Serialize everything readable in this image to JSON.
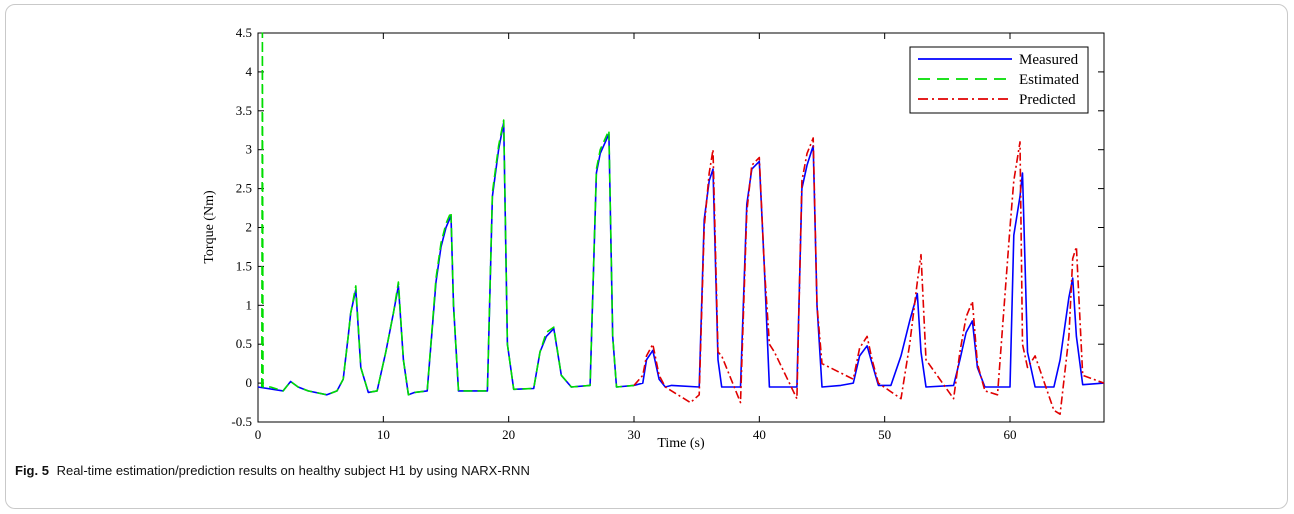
{
  "caption": {
    "label": "Fig. 5",
    "text": "Real-time estimation/prediction results on healthy subject H1 by using NARX-RNN"
  },
  "chart_data": {
    "type": "line",
    "title": "",
    "xlabel": "Time (s)",
    "ylabel": "Torque (Nm)",
    "xlim": [
      0,
      67.5
    ],
    "ylim": [
      -0.5,
      4.5
    ],
    "xticks": [
      0,
      10,
      20,
      30,
      40,
      50,
      60
    ],
    "yticks": [
      -0.5,
      0,
      0.5,
      1,
      1.5,
      2,
      2.5,
      3,
      3.5,
      4,
      4.5
    ],
    "grid": false,
    "legend_position": "top-right",
    "colors": {
      "Measured": "#0000ff",
      "Estimated": "#00dd00",
      "Predicted": "#e00000"
    },
    "series": [
      {
        "name": "Measured",
        "style": "solid",
        "x": [
          0,
          2,
          2.6,
          3.2,
          4,
          5.5,
          6.3,
          6.8,
          7.2,
          7.4,
          7.8,
          8.2,
          8.8,
          9.5,
          10.2,
          10.8,
          11.2,
          11.6,
          12,
          12.5,
          13.5,
          14.2,
          14.6,
          15,
          15.4,
          15.6,
          16,
          16.8,
          18.3,
          18.7,
          19.2,
          19.6,
          19.9,
          20.4,
          22,
          22.5,
          23,
          23.6,
          24.2,
          25,
          26.5,
          27,
          27.3,
          28,
          28.3,
          28.6,
          30,
          30.7,
          31,
          31.5,
          32,
          32.5,
          33,
          35.2,
          35.6,
          36,
          36.3,
          36.7,
          37,
          38.5,
          39,
          39.4,
          40,
          40.4,
          40.8,
          41.2,
          43,
          43.4,
          43.8,
          44.3,
          44.6,
          45,
          46.5,
          47.5,
          48,
          48.6,
          49,
          49.5,
          50.5,
          51.3,
          52,
          52.6,
          52.9,
          53.3,
          55.5,
          56,
          56.5,
          57,
          57.4,
          58,
          59,
          60,
          60.3,
          60.8,
          61,
          61.4,
          62,
          63.5,
          64,
          64.7,
          65,
          65.3,
          65.8,
          67.5
        ],
        "y": [
          -0.05,
          -0.1,
          0.02,
          -0.05,
          -0.1,
          -0.15,
          -0.1,
          0.05,
          0.6,
          0.9,
          1.2,
          0.2,
          -0.12,
          -0.1,
          0.4,
          0.9,
          1.25,
          0.3,
          -0.15,
          -0.12,
          -0.1,
          1.3,
          1.75,
          2.0,
          2.15,
          1.0,
          -0.1,
          -0.1,
          -0.1,
          2.4,
          3.0,
          3.35,
          0.5,
          -0.08,
          -0.07,
          0.4,
          0.6,
          0.7,
          0.1,
          -0.05,
          -0.03,
          2.7,
          2.95,
          3.2,
          0.6,
          -0.05,
          -0.03,
          0.0,
          0.3,
          0.42,
          0.05,
          -0.05,
          -0.03,
          -0.05,
          2.1,
          2.6,
          2.75,
          0.3,
          -0.05,
          -0.05,
          2.3,
          2.75,
          2.85,
          1.5,
          -0.05,
          -0.05,
          -0.05,
          2.5,
          2.8,
          3.05,
          1.0,
          -0.05,
          -0.03,
          0.0,
          0.35,
          0.48,
          0.25,
          -0.03,
          -0.03,
          0.35,
          0.8,
          1.15,
          0.4,
          -0.05,
          -0.03,
          0.3,
          0.65,
          0.8,
          0.2,
          -0.05,
          -0.05,
          -0.05,
          1.9,
          2.4,
          2.7,
          0.4,
          -0.05,
          -0.05,
          0.3,
          1.1,
          1.35,
          0.6,
          -0.02,
          0.0
        ]
      },
      {
        "name": "Estimated",
        "style": "dashed",
        "x": [
          0.3,
          0.35,
          0.4,
          1,
          2,
          2.6,
          3.2,
          4,
          5.5,
          6.3,
          6.8,
          7.2,
          7.4,
          7.8,
          8.2,
          8.8,
          9.5,
          10.2,
          10.8,
          11.2,
          11.6,
          12,
          12.5,
          13.5,
          14.2,
          14.6,
          15,
          15.4,
          15.6,
          16,
          16.8,
          18.3,
          18.7,
          19.2,
          19.6,
          19.9,
          20.4,
          22,
          22.5,
          23,
          23.6,
          24.2,
          25,
          26.5,
          27,
          27.3,
          28,
          28.3,
          28.6,
          30
        ],
        "y": [
          -0.05,
          4.5,
          -0.05,
          -0.05,
          -0.1,
          0.02,
          -0.05,
          -0.1,
          -0.15,
          -0.1,
          0.05,
          0.6,
          0.9,
          1.25,
          0.2,
          -0.12,
          -0.1,
          0.4,
          0.9,
          1.3,
          0.3,
          -0.15,
          -0.12,
          -0.1,
          1.35,
          1.8,
          2.05,
          2.2,
          1.0,
          -0.1,
          -0.1,
          -0.1,
          2.45,
          3.05,
          3.38,
          0.5,
          -0.08,
          -0.07,
          0.4,
          0.65,
          0.72,
          0.1,
          -0.05,
          -0.03,
          2.75,
          3.0,
          3.25,
          0.6,
          -0.05,
          -0.03
        ]
      },
      {
        "name": "Predicted",
        "style": "dashdot",
        "x": [
          30,
          30.7,
          31,
          31.5,
          32,
          32.5,
          33,
          34.5,
          35.2,
          35.6,
          36,
          36.3,
          36.7,
          37,
          38.5,
          39,
          39.4,
          40,
          40.4,
          40.8,
          41.2,
          43,
          43.4,
          43.8,
          44.3,
          44.6,
          45,
          47.5,
          48,
          48.6,
          49,
          49.5,
          51.3,
          52,
          52.6,
          52.9,
          53.3,
          55.5,
          56,
          56.5,
          57,
          57.4,
          58,
          59,
          60,
          60.3,
          60.8,
          61,
          61.4,
          62,
          63.5,
          64,
          64.7,
          65,
          65.3,
          65.8,
          67.5
        ],
        "y": [
          -0.03,
          0.1,
          0.35,
          0.5,
          0.1,
          -0.05,
          -0.1,
          -0.25,
          -0.15,
          2.0,
          2.7,
          3.0,
          0.4,
          0.35,
          -0.25,
          2.2,
          2.8,
          2.9,
          1.5,
          0.5,
          0.4,
          -0.2,
          2.6,
          2.95,
          3.15,
          1.0,
          0.25,
          0.05,
          0.45,
          0.6,
          0.3,
          0.0,
          -0.2,
          0.5,
          1.3,
          1.65,
          0.3,
          -0.2,
          0.4,
          0.85,
          1.05,
          0.25,
          -0.1,
          -0.15,
          2.0,
          2.6,
          3.1,
          0.5,
          0.2,
          0.35,
          -0.35,
          -0.4,
          0.6,
          1.6,
          1.75,
          0.1,
          0.0
        ]
      }
    ]
  }
}
